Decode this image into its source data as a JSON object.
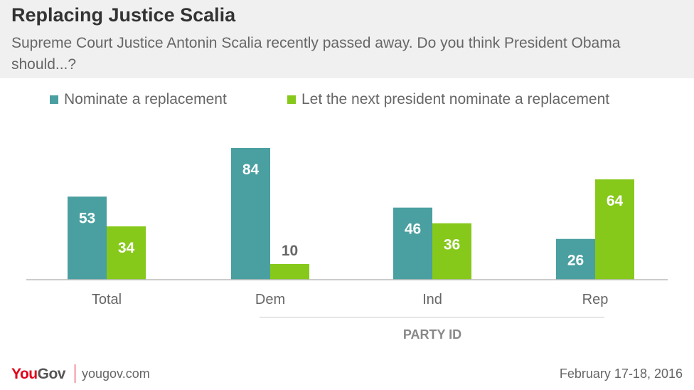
{
  "header": {
    "title": "Replacing Justice Scalia",
    "subtitle": "Supreme Court Justice Antonin Scalia recently passed away. Do you think President Obama should...?"
  },
  "colors": {
    "series1": "#4a9fa0",
    "series2": "#86c91a",
    "header_bg": "#f0f0f0",
    "brand_red": "#e2001a"
  },
  "chart_data": {
    "type": "bar",
    "categories": [
      "Total",
      "Dem",
      "Ind",
      "Rep"
    ],
    "series": [
      {
        "name": "Nominate a replacement",
        "values": [
          53,
          84,
          46,
          26
        ]
      },
      {
        "name": "Let the next president nominate a replacement",
        "values": [
          34,
          10,
          36,
          64
        ]
      }
    ],
    "group_label": "PARTY ID",
    "ylim": [
      0,
      84
    ]
  },
  "footer": {
    "logo_you": "You",
    "logo_gov": "Gov",
    "url": "yougov.com",
    "date": "February 17-18, 2016"
  }
}
